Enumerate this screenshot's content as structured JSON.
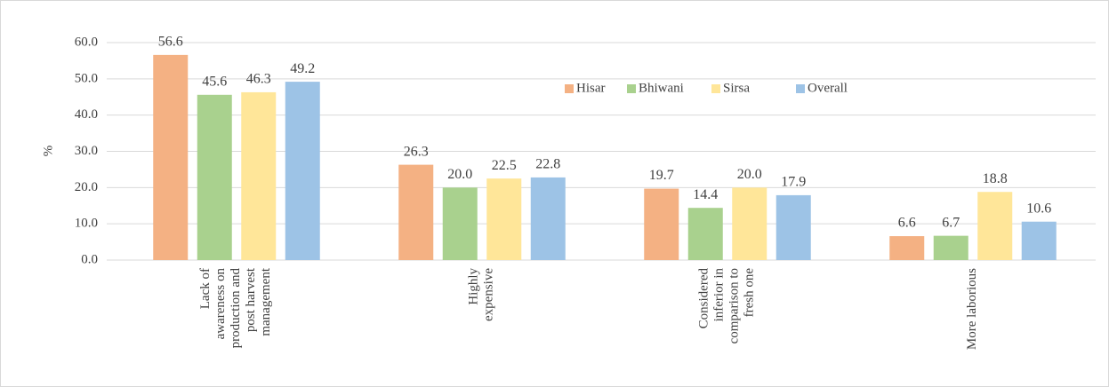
{
  "chart_data": {
    "type": "bar",
    "y_label": "%",
    "categories": [
      "Lack of awareness on production and post harvest management",
      "Highly expensive",
      "Considered inferior in comparison to fresh one",
      "More laborious"
    ],
    "series": [
      {
        "name": "Hisar",
        "color": "#f4b183",
        "values": [
          56.6,
          26.3,
          19.7,
          6.6
        ],
        "value_labels": [
          "56.6",
          "26.3",
          "19.7",
          "6.6"
        ]
      },
      {
        "name": "Bhiwani",
        "color": "#a9d18e",
        "values": [
          45.6,
          20.0,
          14.4,
          6.7
        ],
        "value_labels": [
          "45.6",
          "20.0",
          "14.4",
          "6.7"
        ]
      },
      {
        "name": "Sirsa",
        "color": "#ffe699",
        "values": [
          46.3,
          22.5,
          20.0,
          18.8
        ],
        "value_labels": [
          "46.3",
          "22.5",
          "20.0",
          "18.8"
        ]
      },
      {
        "name": "Overall",
        "color": "#9dc3e6",
        "values": [
          49.2,
          22.8,
          17.9,
          10.6
        ],
        "value_labels": [
          "49.2",
          "22.8",
          "17.9",
          "10.6"
        ]
      }
    ],
    "ylim": [
      0,
      60
    ],
    "yticks": [
      {
        "value": 0,
        "label": "0.0"
      },
      {
        "value": 10,
        "label": "10.0"
      },
      {
        "value": 20,
        "label": "20.0"
      },
      {
        "value": 30,
        "label": "30.0"
      },
      {
        "value": 40,
        "label": "40.0"
      },
      {
        "value": 50,
        "label": "50.0"
      },
      {
        "value": 60,
        "label": "60.0"
      }
    ],
    "grid": true,
    "legend": "top-right"
  }
}
